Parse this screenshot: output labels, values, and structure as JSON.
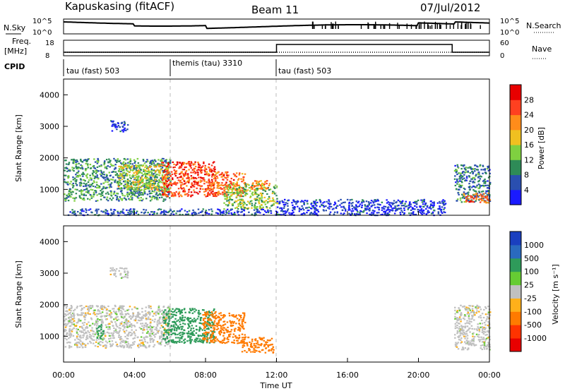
{
  "header": {
    "station": "Kapuskasing (fitACF)",
    "beam": "Beam 11",
    "date": "07/Jul/2012"
  },
  "strips": {
    "nsky_label": "N.Sky",
    "nsky_ticks": [
      "10^5",
      "10^0"
    ],
    "nsearch_label": "N.Search",
    "nsearch_ticks": [
      "10^5",
      "10^0"
    ],
    "freq_label": "Freq.",
    "freq_unit": "[MHz]",
    "freq_ticks": [
      "18",
      "8"
    ],
    "nave_label": "Nave",
    "nave_ticks": [
      "60",
      "0"
    ],
    "cpid_label": "CPID",
    "cpid_segments": [
      {
        "label": "tau (fast) 503",
        "start_hour": 0,
        "end_hour": 6
      },
      {
        "label": "themis (tau) 3310",
        "start_hour": 6,
        "end_hour": 12
      },
      {
        "label": "tau (fast) 503",
        "start_hour": 12,
        "end_hour": 24
      }
    ]
  },
  "chart_data": [
    {
      "type": "heatmap",
      "title": "",
      "xlabel": "",
      "ylabel": "Slant Range [km]",
      "xlim": [
        0,
        24
      ],
      "ylim": [
        180,
        4500
      ],
      "yticks": [
        1000,
        2000,
        3000,
        4000
      ],
      "colorbar": {
        "label": "Power [dB]",
        "ticks": [
          4,
          8,
          12,
          16,
          20,
          24,
          28
        ],
        "range": [
          0,
          32
        ],
        "colors": [
          "#1a1aff",
          "#2a4fb0",
          "#2e8b57",
          "#7fd040",
          "#f0c020",
          "#ff8c1a",
          "#ff4020",
          "#e80000"
        ]
      },
      "echo_regions": [
        {
          "x": [
            0,
            6
          ],
          "y": [
            650,
            2000
          ],
          "level": 10
        },
        {
          "x": [
            3,
            6
          ],
          "y": [
            1000,
            1800
          ],
          "level": 16
        },
        {
          "x": [
            5.5,
            8.5
          ],
          "y": [
            800,
            1900
          ],
          "level": 26
        },
        {
          "x": [
            8,
            10.2
          ],
          "y": [
            800,
            1600
          ],
          "level": 24
        },
        {
          "x": [
            9,
            12
          ],
          "y": [
            400,
            1200
          ],
          "level": 14
        },
        {
          "x": [
            10.5,
            11.6
          ],
          "y": [
            1000,
            1300
          ],
          "level": 22
        },
        {
          "x": [
            2.6,
            3.6
          ],
          "y": [
            2850,
            3200
          ],
          "level": 5
        },
        {
          "x": [
            0.2,
            12
          ],
          "y": [
            200,
            400
          ],
          "level": 6
        },
        {
          "x": [
            12,
            21.5
          ],
          "y": [
            200,
            700
          ],
          "level": 4
        },
        {
          "x": [
            22,
            24
          ],
          "y": [
            600,
            1800
          ],
          "level": 8
        },
        {
          "x": [
            22.5,
            24
          ],
          "y": [
            600,
            900
          ],
          "level": 24
        }
      ]
    },
    {
      "type": "heatmap",
      "title": "",
      "xlabel": "Time UT",
      "ylabel": "Slant Range [km]",
      "xlim": [
        0,
        24
      ],
      "ylim": [
        180,
        4500
      ],
      "yticks": [
        1000,
        2000,
        3000,
        4000
      ],
      "xticks": [
        "00:00",
        "04:00",
        "08:00",
        "12:00",
        "16:00",
        "20:00",
        "00:00"
      ],
      "colorbar": {
        "label": "Velocity [m s⁻¹]",
        "tick_labels": [
          "1000",
          "500",
          "100",
          "25",
          "-25",
          "-100",
          "-500",
          "-1000"
        ],
        "colors": [
          "#1a3fbf",
          "#2a6abf",
          "#2e9b5a",
          "#66cc33",
          "#c0c0c0",
          "#ffb01a",
          "#ff7a00",
          "#ff3300",
          "#e80000"
        ]
      },
      "echo_regions": [
        {
          "x": [
            0,
            6
          ],
          "y": [
            650,
            2000
          ],
          "value": 0
        },
        {
          "x": [
            1.8,
            2.2
          ],
          "y": [
            900,
            1400
          ],
          "value": 150
        },
        {
          "x": [
            5.5,
            8.5
          ],
          "y": [
            800,
            1900
          ],
          "value": 200
        },
        {
          "x": [
            7.8,
            10.2
          ],
          "y": [
            800,
            1800
          ],
          "value": -200
        },
        {
          "x": [
            10,
            11.8
          ],
          "y": [
            500,
            1000
          ],
          "value": -300
        },
        {
          "x": [
            2.6,
            3.6
          ],
          "y": [
            2850,
            3200
          ],
          "value": 0
        },
        {
          "x": [
            22,
            24
          ],
          "y": [
            600,
            2000
          ],
          "value": 0
        }
      ]
    }
  ]
}
